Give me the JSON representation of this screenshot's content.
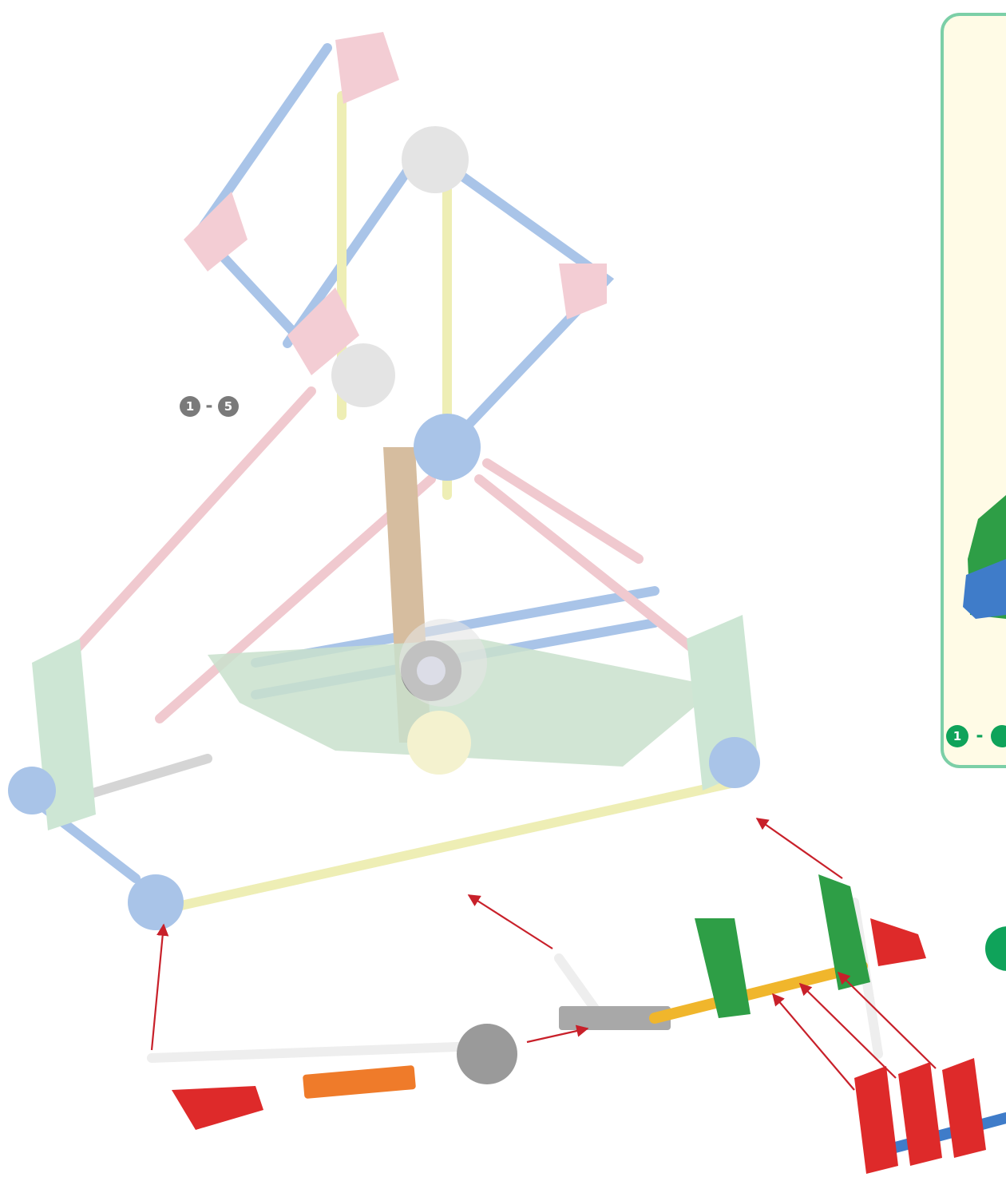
{
  "main_step_range": {
    "start": "1",
    "separator": "-",
    "end": "5"
  },
  "inset_step_range": {
    "start": "1",
    "separator": "-"
  }
}
